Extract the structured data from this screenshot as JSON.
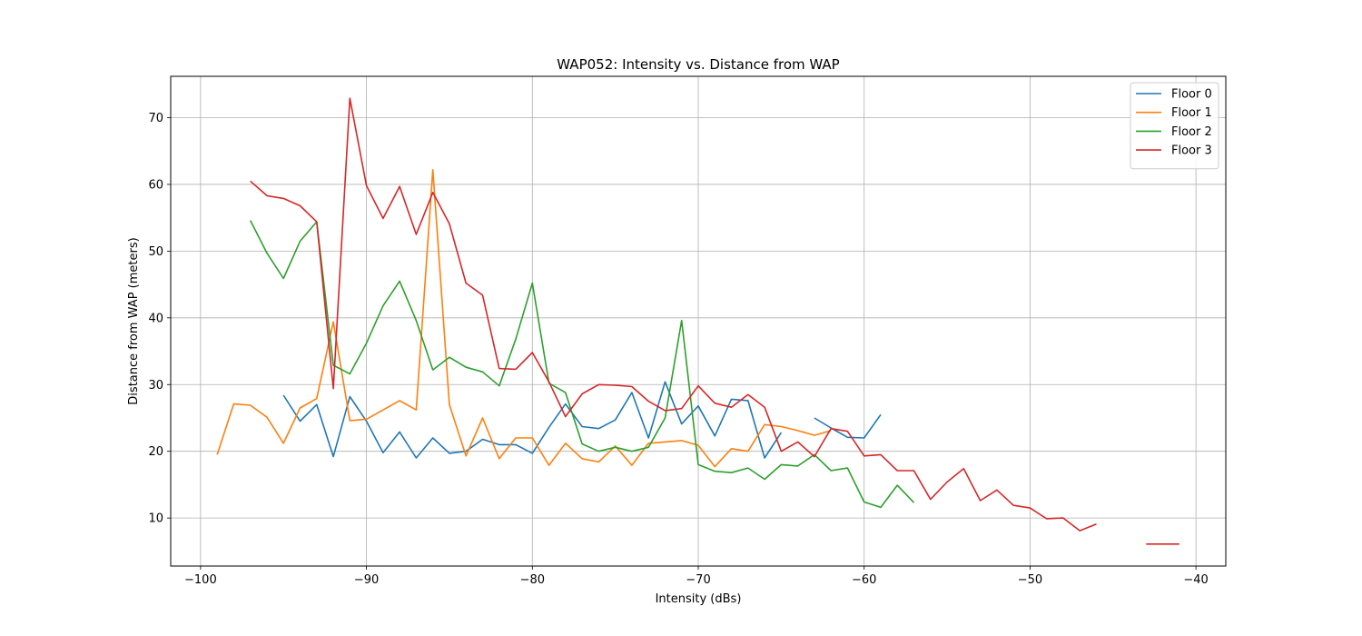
{
  "chart_data": {
    "type": "line",
    "title": "WAP052: Intensity vs. Distance from WAP",
    "xlabel": "Intensity (dBs)",
    "ylabel": "Distance from WAP (meters)",
    "xlim": [
      -101.8,
      -38.2
    ],
    "ylim": [
      2.8,
      76.2
    ],
    "xticks": [
      -100,
      -90,
      -80,
      -70,
      -60,
      -50,
      -40
    ],
    "yticks": [
      10,
      20,
      30,
      40,
      50,
      60,
      70
    ],
    "grid": true,
    "legend_position": "top-right",
    "series": [
      {
        "name": "Floor 0",
        "color": "#1f77b4",
        "points": [
          [
            -95,
            28.4
          ],
          [
            -94,
            24.5
          ],
          [
            -93,
            27
          ],
          [
            -92,
            19.2
          ],
          [
            -91,
            28.2
          ],
          [
            -90,
            24.5
          ],
          [
            -89,
            19.8
          ],
          [
            -88,
            22.9
          ],
          [
            -87,
            19
          ],
          [
            -86,
            22
          ],
          [
            -85,
            19.7
          ],
          [
            -84,
            20
          ],
          [
            -83,
            21.8
          ],
          [
            -82,
            21
          ],
          [
            -81,
            21
          ],
          [
            -80,
            19.7
          ],
          [
            -79,
            23.6
          ],
          [
            -78,
            27.1
          ],
          [
            -77,
            23.7
          ],
          [
            -76,
            23.4
          ],
          [
            -75,
            24.7
          ],
          [
            -74,
            28.8
          ],
          [
            -73,
            22
          ],
          [
            -72,
            30.4
          ],
          [
            -71,
            24.1
          ],
          [
            -70,
            26.8
          ],
          [
            -69,
            22.3
          ],
          [
            -68,
            27.8
          ],
          [
            -67,
            27.6
          ],
          [
            -66,
            19
          ],
          [
            -65,
            22.8
          ],
          null,
          [
            -63,
            25
          ],
          [
            -62,
            23.5
          ],
          [
            -61,
            22.1
          ],
          [
            -60,
            22
          ],
          [
            -59,
            25.5
          ]
        ]
      },
      {
        "name": "Floor 1",
        "color": "#ff7f0e",
        "points": [
          [
            -99,
            19.5
          ],
          [
            -98,
            27.1
          ],
          [
            -97,
            26.9
          ],
          [
            -96,
            25.1
          ],
          [
            -95,
            21.2
          ],
          [
            -94,
            26.5
          ],
          [
            -93,
            27.9
          ],
          [
            -92,
            39.4
          ],
          [
            -91,
            24.6
          ],
          [
            -90,
            24.8
          ],
          [
            -89,
            26.2
          ],
          [
            -88,
            27.6
          ],
          [
            -87,
            26.2
          ],
          [
            -86,
            62.2
          ],
          [
            -85,
            27
          ],
          [
            -84,
            19.3
          ],
          [
            -83,
            25
          ],
          [
            -82,
            18.9
          ],
          [
            -81,
            22
          ],
          [
            -80,
            22
          ],
          [
            -79,
            17.9
          ],
          [
            -78,
            21.2
          ],
          [
            -77,
            18.9
          ],
          [
            -76,
            18.4
          ],
          [
            -75,
            20.8
          ],
          [
            -74,
            17.9
          ],
          [
            -73,
            21.2
          ],
          [
            -72,
            21.4
          ],
          [
            -71,
            21.6
          ],
          [
            -70,
            20.9
          ],
          [
            -69,
            17.7
          ],
          [
            -68,
            20.4
          ],
          [
            -67,
            20
          ],
          [
            -66,
            24
          ],
          [
            -65,
            23.7
          ],
          [
            -64,
            23.1
          ],
          [
            -63,
            22.4
          ],
          [
            -62,
            23.1
          ]
        ]
      },
      {
        "name": "Floor 2",
        "color": "#2ca02c",
        "points": [
          [
            -97,
            54.6
          ],
          [
            -96,
            49.7
          ],
          [
            -95,
            45.9
          ],
          [
            -94,
            51.5
          ],
          [
            -93,
            54.4
          ],
          [
            -92,
            32.9
          ],
          [
            -91,
            31.6
          ],
          [
            -90,
            36.2
          ],
          [
            -89,
            41.8
          ],
          [
            -88,
            45.5
          ],
          [
            -87,
            39.6
          ],
          [
            -86,
            32.2
          ],
          [
            -85,
            34.1
          ],
          [
            -84,
            32.6
          ],
          [
            -83,
            31.9
          ],
          [
            -82,
            29.8
          ],
          [
            -81,
            36.8
          ],
          [
            -80,
            45.2
          ],
          [
            -79,
            30.2
          ],
          [
            -78,
            28.8
          ],
          [
            -77,
            21.1
          ],
          [
            -76,
            20
          ],
          [
            -75,
            20.6
          ],
          [
            -74,
            20
          ],
          [
            -73,
            20.6
          ],
          [
            -72,
            25
          ],
          [
            -71,
            39.6
          ],
          [
            -70,
            18
          ],
          [
            -69,
            17
          ],
          [
            -68,
            16.8
          ],
          [
            -67,
            17.5
          ],
          [
            -66,
            15.8
          ],
          [
            -65,
            18
          ],
          [
            -64,
            17.8
          ],
          [
            -63,
            19.5
          ],
          [
            -62,
            17.1
          ],
          [
            -61,
            17.5
          ],
          [
            -60,
            12.4
          ],
          [
            -59,
            11.6
          ],
          [
            -58,
            14.9
          ],
          [
            -57,
            12.3
          ]
        ]
      },
      {
        "name": "Floor 3",
        "color": "#d62728",
        "points": [
          [
            -97,
            60.5
          ],
          [
            -96,
            58.3
          ],
          [
            -95,
            57.9
          ],
          [
            -94,
            56.8
          ],
          [
            -93,
            54.4
          ],
          [
            -92,
            29.4
          ],
          [
            -91,
            72.9
          ],
          [
            -90,
            59.8
          ],
          [
            -89,
            54.9
          ],
          [
            -88,
            59.7
          ],
          [
            -87,
            52.5
          ],
          [
            -86,
            58.8
          ],
          [
            -85,
            54.1
          ],
          [
            -84,
            45.2
          ],
          [
            -83,
            43.4
          ],
          [
            -82,
            32.4
          ],
          [
            -81,
            32.3
          ],
          [
            -80,
            34.8
          ],
          [
            -79,
            30.4
          ],
          [
            -78,
            25.2
          ],
          [
            -77,
            28.6
          ],
          [
            -76,
            30
          ],
          [
            -75,
            29.9
          ],
          [
            -74,
            29.7
          ],
          [
            -73,
            27.5
          ],
          [
            -72,
            26.1
          ],
          [
            -71,
            26.4
          ],
          [
            -70,
            29.8
          ],
          [
            -69,
            27.2
          ],
          [
            -68,
            26.6
          ],
          [
            -67,
            28.5
          ],
          [
            -66,
            26.6
          ],
          [
            -65,
            20
          ],
          [
            -64,
            21.4
          ],
          [
            -63,
            19.2
          ],
          [
            -62,
            23.4
          ],
          [
            -61,
            23
          ],
          [
            -60,
            19.3
          ],
          [
            -59,
            19.5
          ],
          [
            -58,
            17.1
          ],
          [
            -57,
            17.1
          ],
          [
            -56,
            12.8
          ],
          [
            -55,
            15.4
          ],
          [
            -54,
            17.4
          ],
          [
            -53,
            12.6
          ],
          [
            -52,
            14.2
          ],
          [
            -51,
            11.9
          ],
          [
            -50,
            11.5
          ],
          [
            -49,
            9.9
          ],
          [
            -48,
            10
          ],
          [
            -47,
            8.1
          ],
          [
            -46,
            9.1
          ],
          null,
          [
            -43,
            6.1
          ],
          [
            -42,
            6.1
          ],
          [
            -41,
            6.1
          ]
        ]
      }
    ]
  }
}
